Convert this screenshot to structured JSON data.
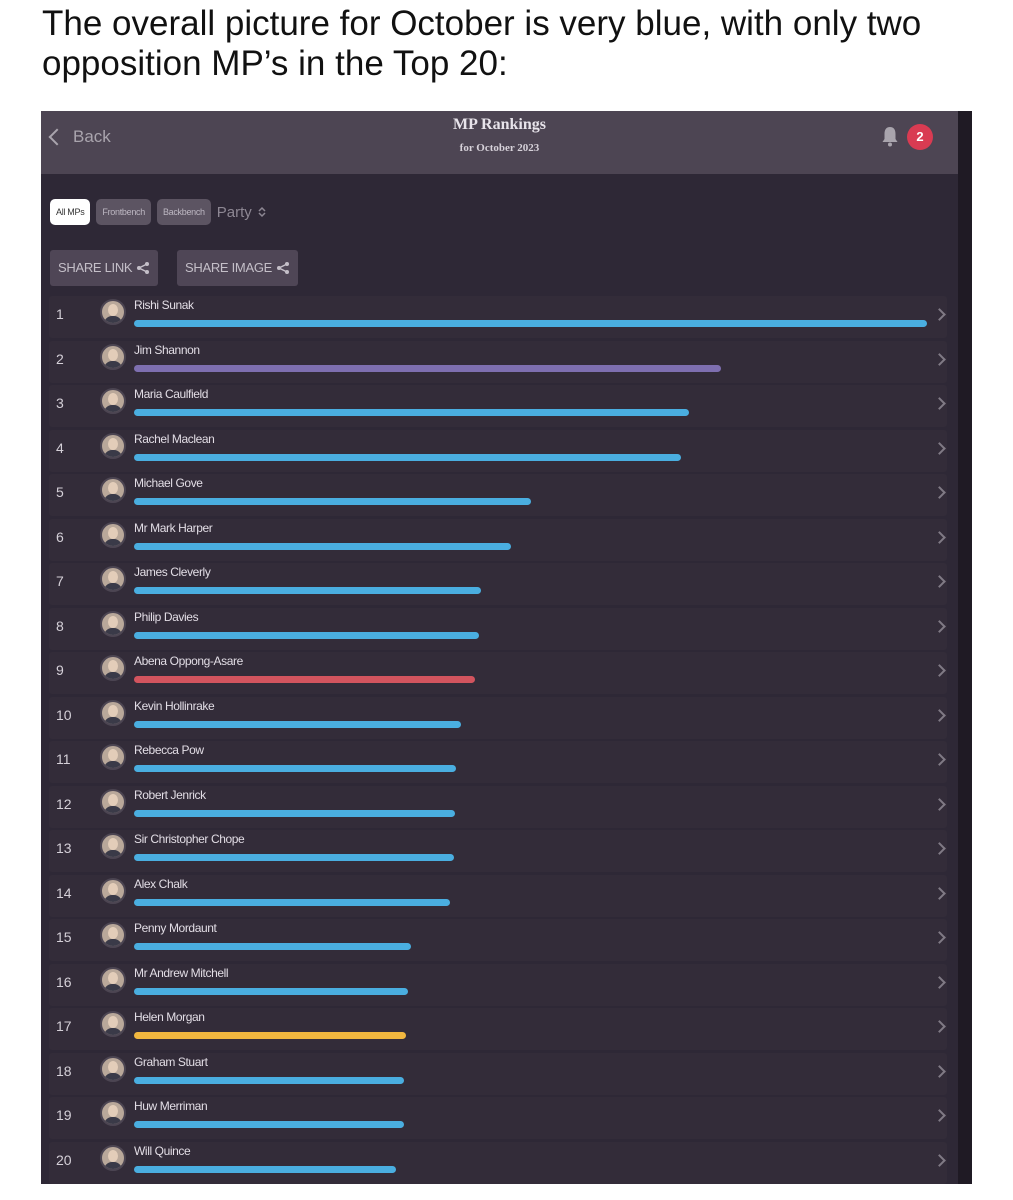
{
  "caption": "The overall picture for October is very blue, with only two opposition MP’s in the Top 20:",
  "header": {
    "back_label": "Back",
    "title": "MP Rankings",
    "subtitle": "for October 2023",
    "notification_count": "2"
  },
  "filters": {
    "all_mps": "All MPs",
    "frontbench": "Frontbench",
    "backbench": "Backbench",
    "party": "Party"
  },
  "share": {
    "link_label": "SHARE LINK",
    "image_label": "SHARE IMAGE"
  },
  "colors": {
    "blue": "#4aaee0",
    "purple": "#7e6fb0",
    "red": "#d2545e",
    "yellow": "#f1b73f"
  },
  "rankings": [
    {
      "rank": "1",
      "name": "Rishi Sunak",
      "score": 1.0,
      "party_color": "blue"
    },
    {
      "rank": "2",
      "name": "Jim Shannon",
      "score": 0.74,
      "party_color": "purple"
    },
    {
      "rank": "3",
      "name": "Maria Caulfield",
      "score": 0.7,
      "party_color": "blue"
    },
    {
      "rank": "4",
      "name": "Rachel Maclean",
      "score": 0.69,
      "party_color": "blue"
    },
    {
      "rank": "5",
      "name": "Michael Gove",
      "score": 0.5,
      "party_color": "blue"
    },
    {
      "rank": "6",
      "name": "Mr Mark Harper",
      "score": 0.475,
      "party_color": "blue"
    },
    {
      "rank": "7",
      "name": "James Cleverly",
      "score": 0.438,
      "party_color": "blue"
    },
    {
      "rank": "8",
      "name": "Philip Davies",
      "score": 0.435,
      "party_color": "blue"
    },
    {
      "rank": "9",
      "name": "Abena Oppong-Asare",
      "score": 0.43,
      "party_color": "red"
    },
    {
      "rank": "10",
      "name": "Kevin Hollinrake",
      "score": 0.412,
      "party_color": "blue"
    },
    {
      "rank": "11",
      "name": "Rebecca Pow",
      "score": 0.406,
      "party_color": "blue"
    },
    {
      "rank": "12",
      "name": "Robert Jenrick",
      "score": 0.405,
      "party_color": "blue"
    },
    {
      "rank": "13",
      "name": "Sir Christopher Chope",
      "score": 0.404,
      "party_color": "blue"
    },
    {
      "rank": "14",
      "name": "Alex Chalk",
      "score": 0.398,
      "party_color": "blue"
    },
    {
      "rank": "15",
      "name": "Penny Mordaunt",
      "score": 0.349,
      "party_color": "blue"
    },
    {
      "rank": "16",
      "name": "Mr Andrew Mitchell",
      "score": 0.345,
      "party_color": "blue"
    },
    {
      "rank": "17",
      "name": "Helen Morgan",
      "score": 0.343,
      "party_color": "yellow"
    },
    {
      "rank": "18",
      "name": "Graham Stuart",
      "score": 0.34,
      "party_color": "blue"
    },
    {
      "rank": "19",
      "name": "Huw Merriman",
      "score": 0.34,
      "party_color": "blue"
    },
    {
      "rank": "20",
      "name": "Will Quince",
      "score": 0.33,
      "party_color": "blue"
    }
  ]
}
